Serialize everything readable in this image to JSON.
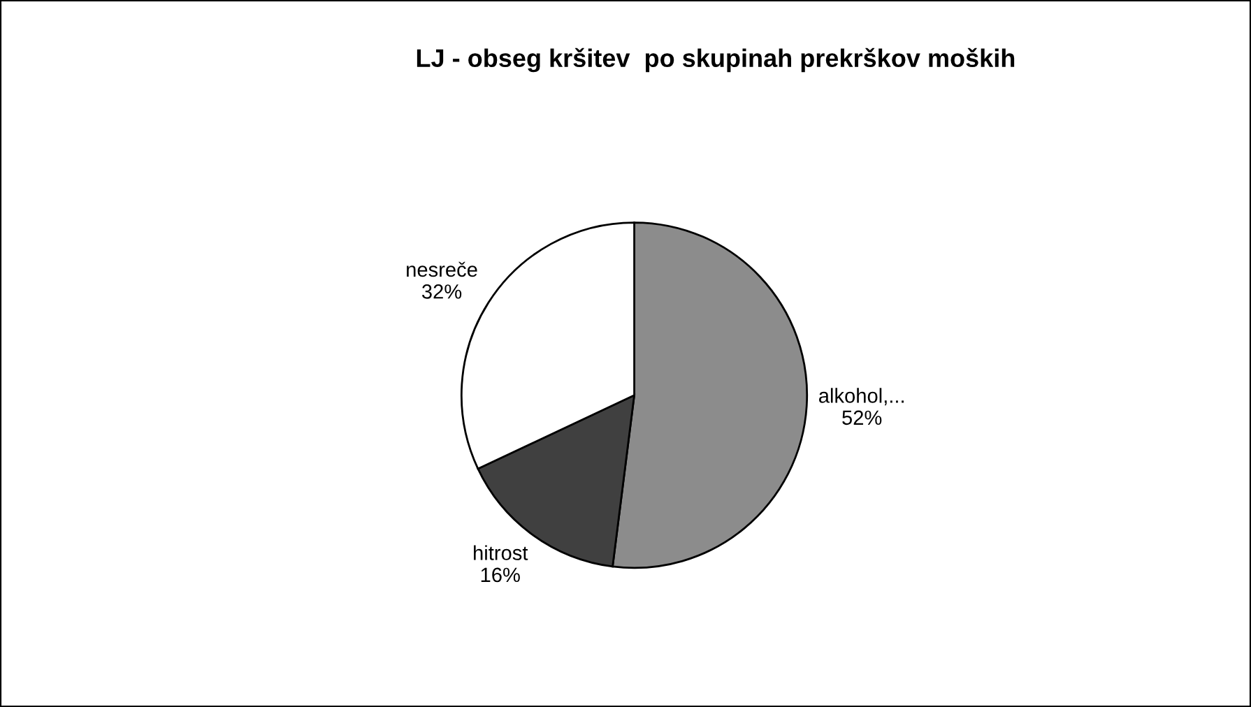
{
  "chart_data": {
    "type": "pie",
    "title": "LJ - obseg kršitev  po skupinah prekrškov moških",
    "categories": [
      "alkohol,...",
      "hitrost",
      "nesreče"
    ],
    "values": [
      52,
      16,
      32
    ],
    "colors": [
      "#8c8c8c",
      "#404040",
      "#ffffff"
    ],
    "value_labels": [
      "52%",
      "16%",
      "32%"
    ]
  }
}
